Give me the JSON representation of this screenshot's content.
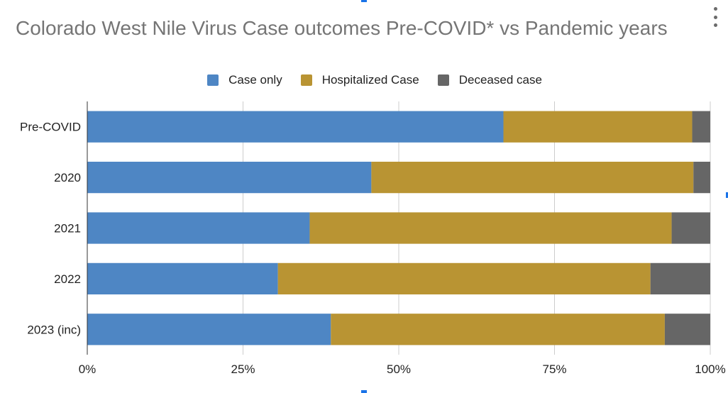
{
  "chart_data": {
    "type": "bar",
    "orientation": "horizontal",
    "stacked": "percent",
    "title": "Colorado West Nile Virus Case outcomes Pre-COVID* vs Pandemic years",
    "categories": [
      "Pre-COVID",
      "2020",
      "2021",
      "2022",
      "2023 (inc)"
    ],
    "series": [
      {
        "name": "Case only",
        "color": "#4e86c4",
        "values": [
          66.8,
          45.6,
          35.7,
          30.6,
          39.1
        ]
      },
      {
        "name": "Hospitalized Case",
        "color": "#b99433",
        "values": [
          30.3,
          51.7,
          58.1,
          59.8,
          53.6
        ]
      },
      {
        "name": "Deceased case",
        "color": "#666666",
        "values": [
          2.9,
          2.7,
          6.2,
          9.6,
          7.3
        ]
      }
    ],
    "x_ticks": [
      "0%",
      "25%",
      "50%",
      "75%",
      "100%"
    ],
    "xlim": [
      0,
      100
    ],
    "grid": true,
    "legend_position": "top"
  }
}
